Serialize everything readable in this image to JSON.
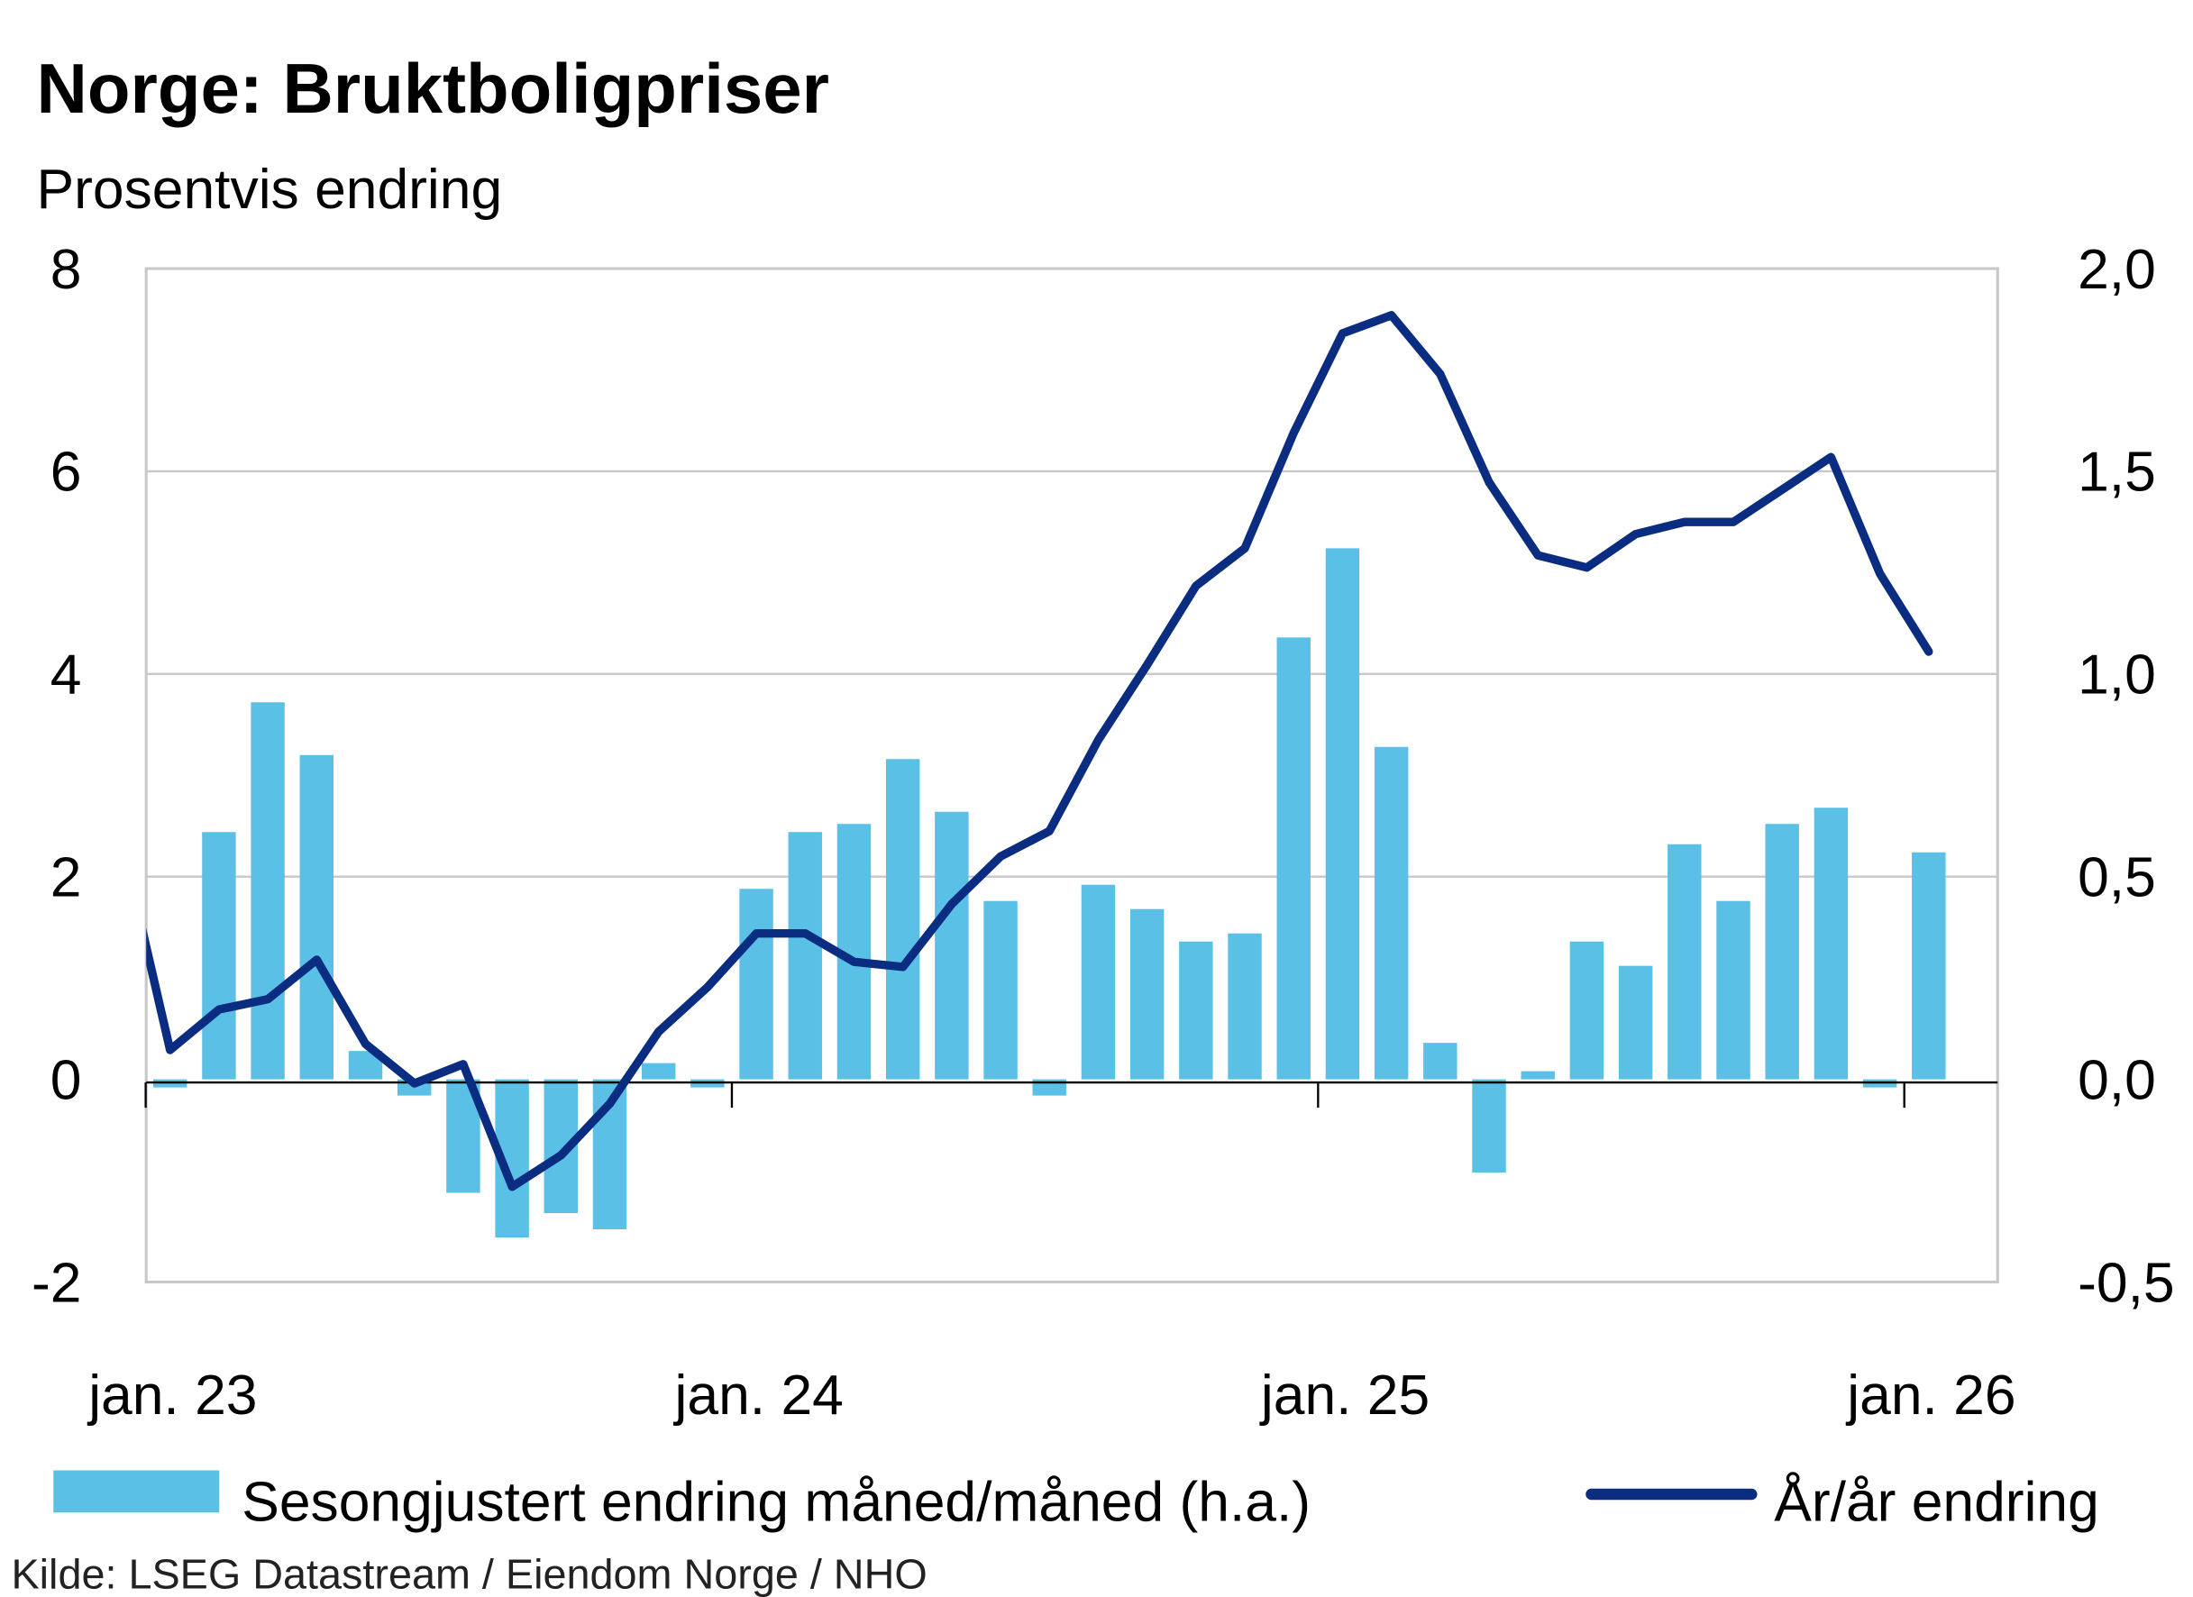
{
  "colors": {
    "bar": "#5bc0e6",
    "line": "#0a2d82",
    "grid": "#c8c8c8",
    "axis": "#000000"
  },
  "chart_data": {
    "type": "bar+line",
    "title": "Norge:  Bruktboligpriser",
    "subtitle": "Prosentvis endring",
    "source": "Kilde: LSEG Datastream / Eiendom Norge / NHO",
    "x_tick_labels": [
      "jan. 23",
      "jan. 24",
      "jan. 25",
      "jan. 26"
    ],
    "left_axis": {
      "ylim": [
        -2,
        8
      ],
      "ticks": [
        "8",
        "6",
        "4",
        "2",
        "0",
        "-2"
      ],
      "tick_values": [
        8,
        6,
        4,
        2,
        0,
        -2
      ]
    },
    "right_axis": {
      "ylim": [
        -0.5,
        2.0
      ],
      "ticks": [
        "2,0",
        "1,5",
        "1,0",
        "0,5",
        "0,0",
        "-0,5"
      ],
      "tick_values": [
        2.0,
        1.5,
        1.0,
        0.5,
        0.0,
        -0.5
      ]
    },
    "grid": true,
    "legend_position": "bottom",
    "series": [
      {
        "name": "Sesongjustert endring måned/måned (h.a.)",
        "type": "bar",
        "axis": "right",
        "start": "2023-01",
        "values": [
          -0.02,
          0.61,
          0.93,
          0.8,
          0.07,
          -0.04,
          -0.28,
          -0.39,
          -0.33,
          -0.37,
          0.04,
          -0.02,
          0.47,
          0.61,
          0.63,
          0.79,
          0.66,
          0.44,
          -0.04,
          0.48,
          0.42,
          0.34,
          0.36,
          1.09,
          1.31,
          0.82,
          0.09,
          -0.23,
          0.02,
          0.34,
          0.28,
          0.58,
          0.44,
          0.63,
          0.67,
          -0.02,
          0.56
        ]
      },
      {
        "name": "År/år endring",
        "type": "line",
        "axis": "left",
        "start": "2022-12",
        "values": [
          2.37,
          0.29,
          0.69,
          0.79,
          1.18,
          0.35,
          -0.04,
          0.15,
          -1.06,
          -0.75,
          -0.24,
          0.47,
          0.91,
          1.44,
          1.44,
          1.16,
          1.11,
          1.73,
          2.2,
          2.45,
          3.35,
          4.09,
          4.87,
          5.24,
          6.38,
          7.36,
          7.54,
          6.96,
          5.89,
          5.17,
          5.05,
          5.38,
          5.5,
          5.5,
          5.82,
          6.14,
          4.99,
          4.22
        ]
      }
    ]
  }
}
